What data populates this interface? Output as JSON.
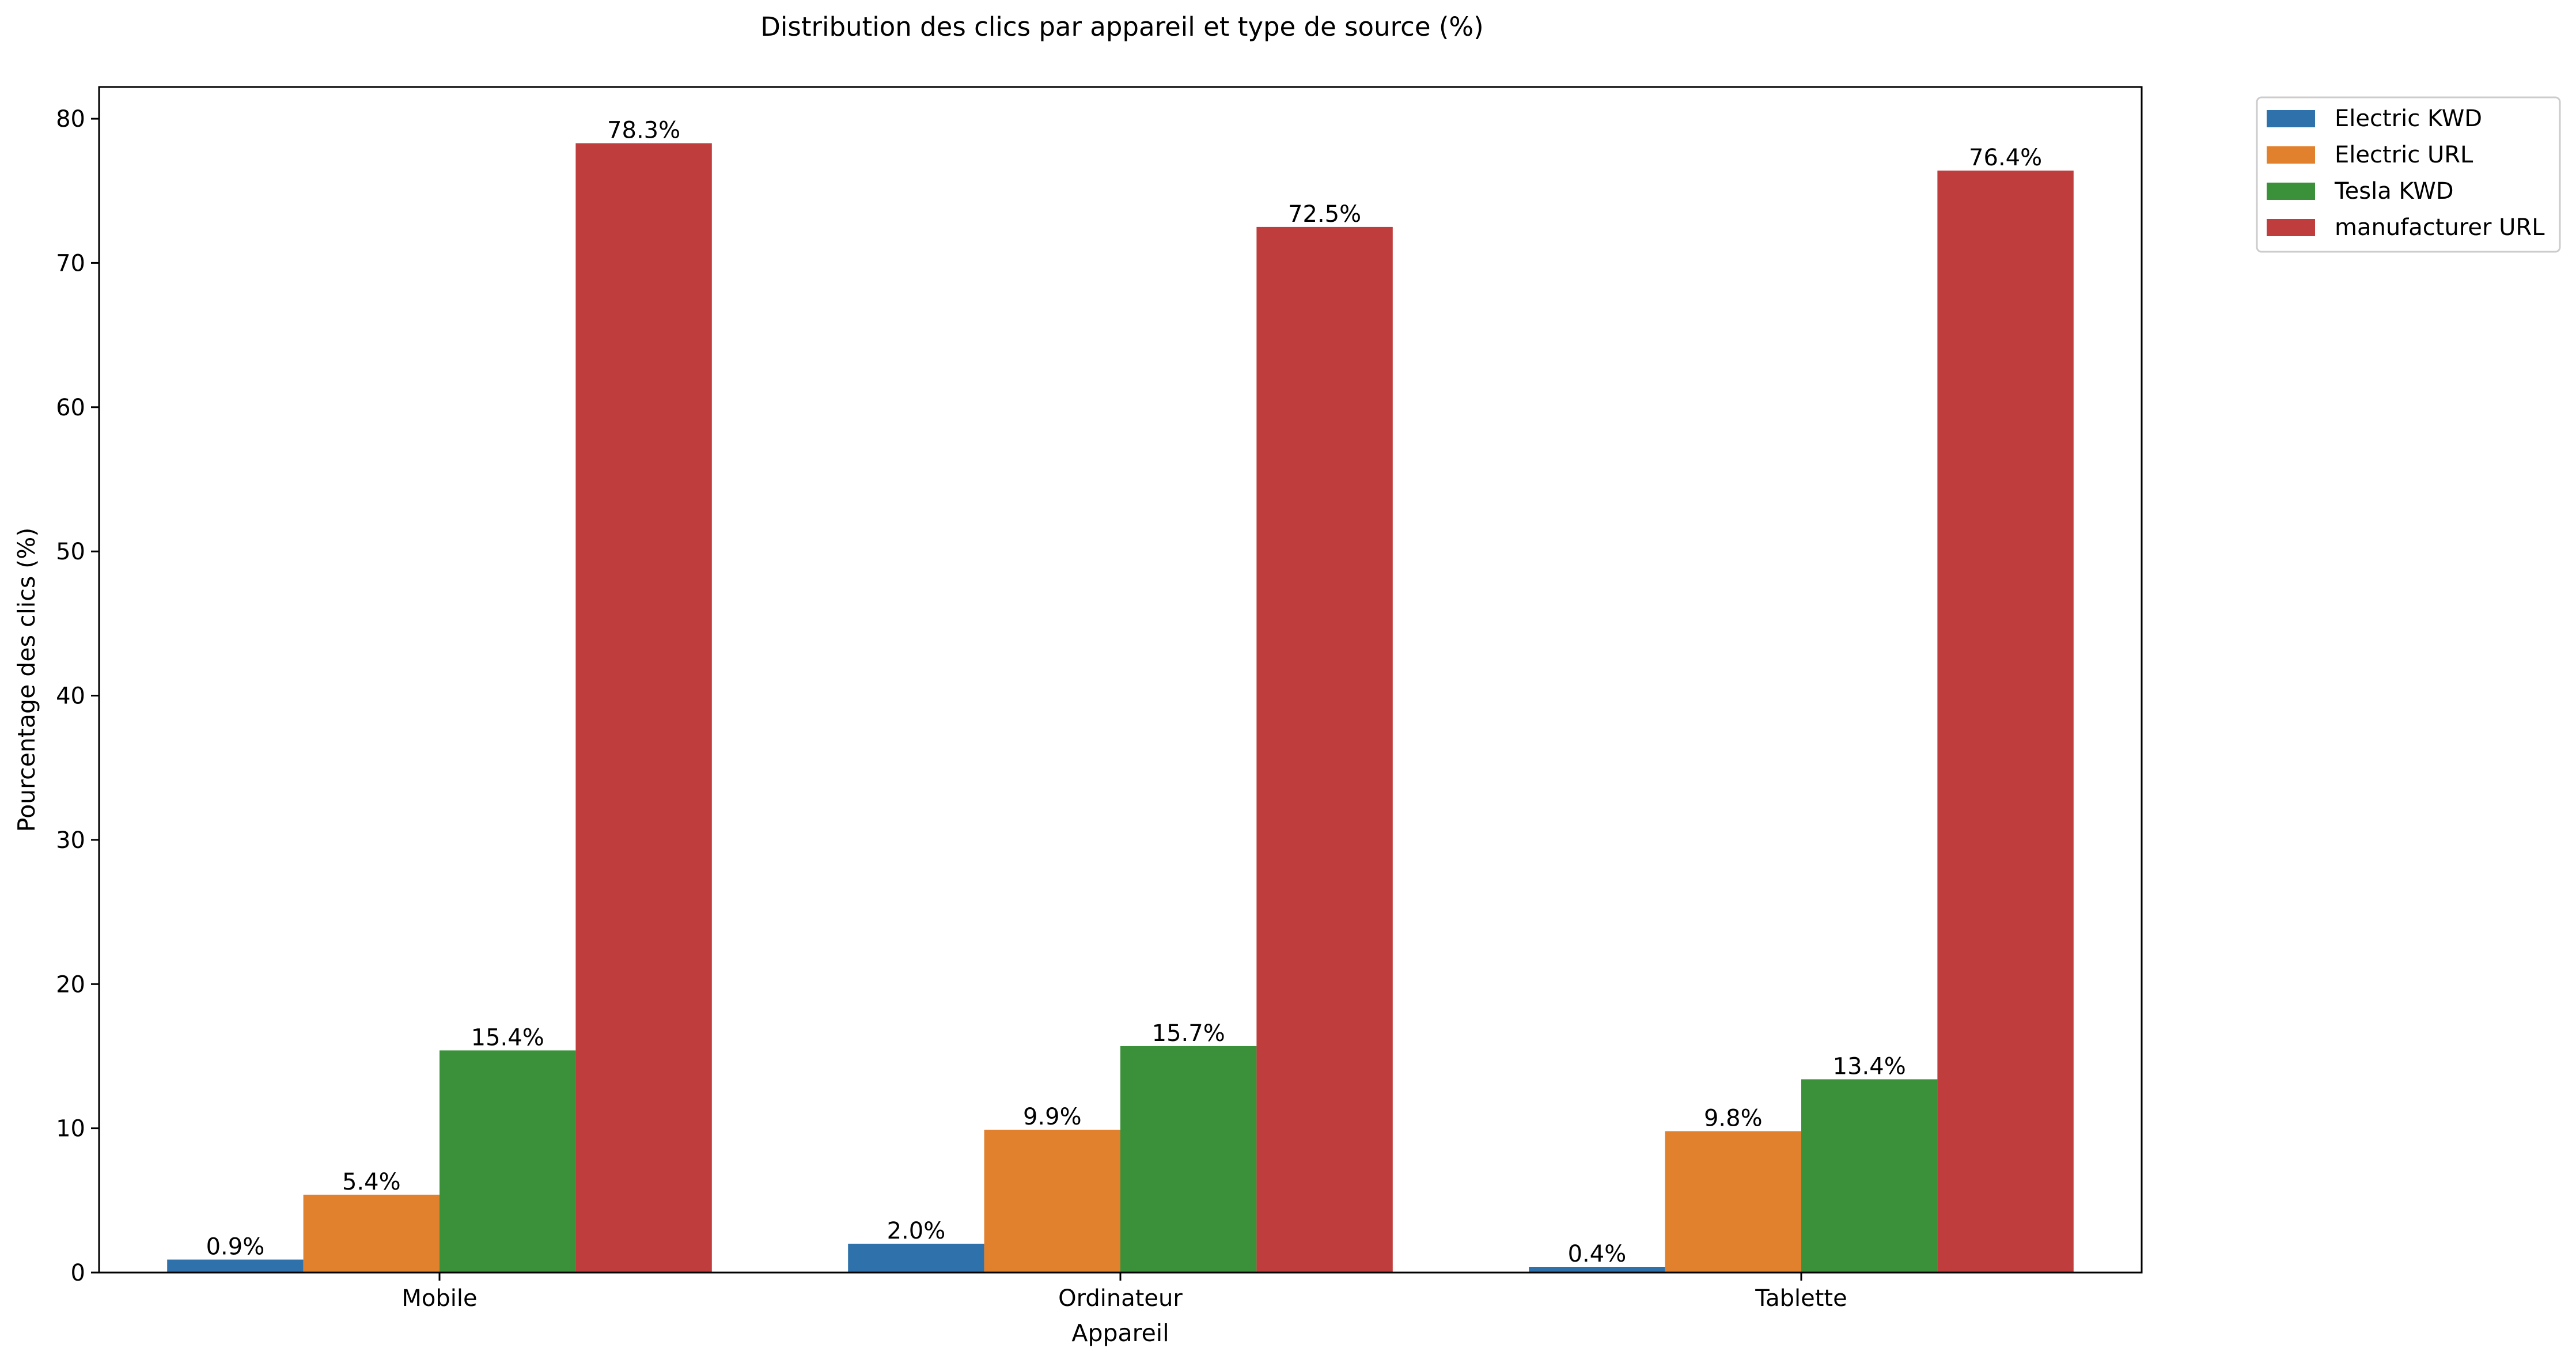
{
  "chart_data": {
    "type": "bar",
    "title": "Distribution des clics par appareil et type de source (%)",
    "xlabel": "Appareil",
    "ylabel": "Pourcentage des clics (%)",
    "categories": [
      "Mobile",
      "Ordinateur",
      "Tablette"
    ],
    "ylim": [
      0,
      82.2
    ],
    "yticks": [
      0,
      10,
      20,
      30,
      40,
      50,
      60,
      70,
      80
    ],
    "grid": false,
    "legend_position": "outside top-right",
    "series": [
      {
        "name": "Electric KWD",
        "color": "#2f72ab",
        "values": [
          0.9,
          2.0,
          0.4
        ],
        "labels": [
          "0.9%",
          "2.0%",
          "0.4%"
        ]
      },
      {
        "name": "Electric URL",
        "color": "#e1802d",
        "values": [
          5.4,
          9.9,
          9.8
        ],
        "labels": [
          "5.4%",
          "9.9%",
          "9.8%"
        ]
      },
      {
        "name": "Tesla KWD",
        "color": "#3a913a",
        "values": [
          15.4,
          15.7,
          13.4
        ],
        "labels": [
          "15.4%",
          "15.7%",
          "13.4%"
        ]
      },
      {
        "name": "manufacturer URL",
        "color": "#bf3d3d",
        "values": [
          78.3,
          72.5,
          76.4
        ],
        "labels": [
          "78.3%",
          "72.5%",
          "76.4%"
        ]
      }
    ]
  }
}
